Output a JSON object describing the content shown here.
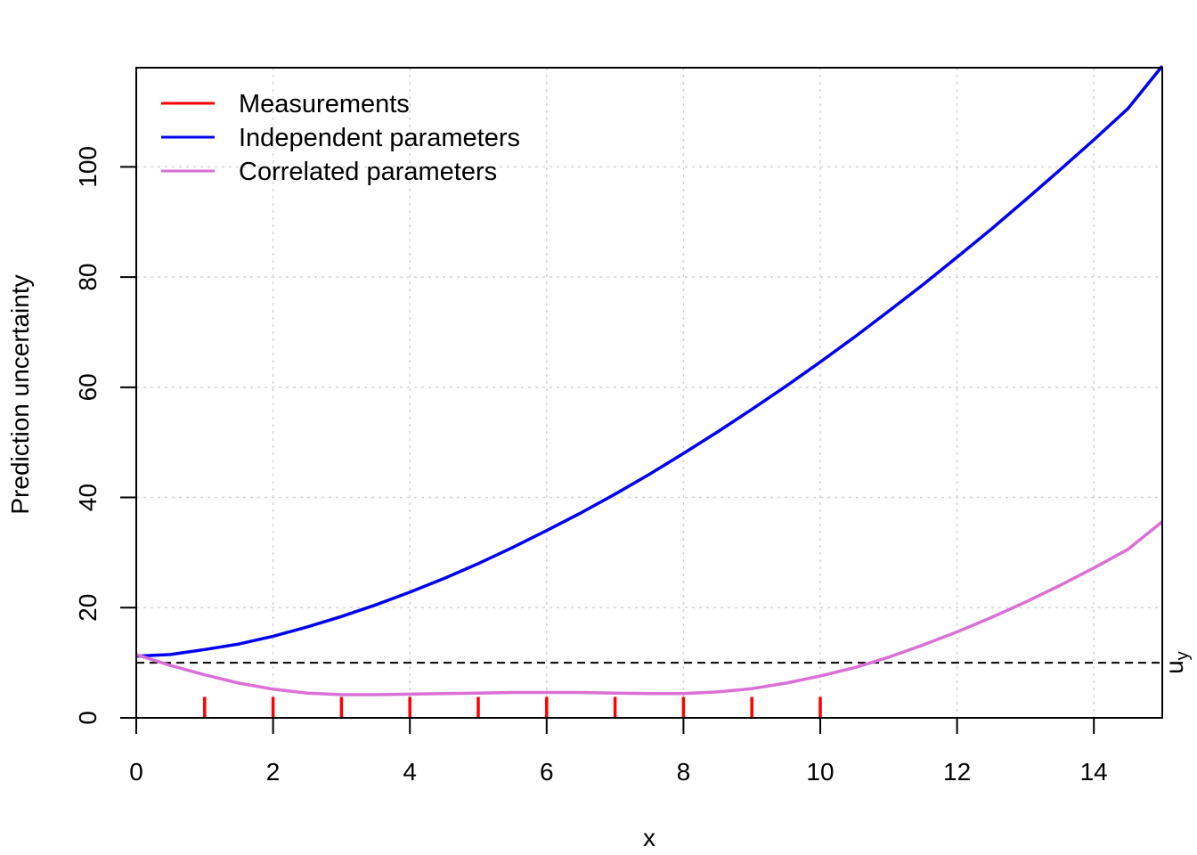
{
  "chart_data": {
    "type": "line",
    "xlabel": "x",
    "ylabel": "Prediction uncertainty",
    "xlim": [
      0,
      15
    ],
    "ylim": [
      0,
      118
    ],
    "x_ticks": [
      "0",
      "2",
      "4",
      "6",
      "8",
      "10",
      "12",
      "14"
    ],
    "y_ticks": [
      "0",
      "20",
      "40",
      "60",
      "80",
      "100"
    ],
    "grid": true,
    "legend_position": "top-left",
    "series": [
      {
        "name": "Independent parameters",
        "color": "#0000ee",
        "x": [
          0,
          0.5,
          1,
          1.5,
          2,
          2.5,
          3,
          3.5,
          4,
          4.5,
          5,
          5.5,
          6,
          6.5,
          7,
          7.5,
          8,
          8.5,
          9,
          9.5,
          10,
          10.5,
          11,
          11.5,
          12,
          12.5,
          13,
          13.5,
          14,
          14.5,
          15
        ],
        "y": [
          11.2,
          11.5,
          12.4,
          13.4,
          14.8,
          16.5,
          18.4,
          20.5,
          22.8,
          25.3,
          28.0,
          30.9,
          34.0,
          37.2,
          40.6,
          44.2,
          48.0,
          51.9,
          56.0,
          60.2,
          64.6,
          69.1,
          73.8,
          78.6,
          83.6,
          88.7,
          94.0,
          99.4,
          104.9,
          110.6,
          118.3
        ]
      },
      {
        "name": "Correlated parameters",
        "color": "#da70d6",
        "x": [
          0,
          0.5,
          1,
          1.5,
          2,
          2.5,
          3,
          3.5,
          4,
          4.5,
          5,
          5.5,
          6,
          6.5,
          7,
          7.5,
          8,
          8.5,
          9,
          9.5,
          10,
          10.5,
          11,
          11.5,
          12,
          12.5,
          13,
          13.5,
          14,
          14.5,
          15
        ],
        "y": [
          11.5,
          9.5,
          7.8,
          6.3,
          5.2,
          4.5,
          4.2,
          4.2,
          4.3,
          4.4,
          4.5,
          4.6,
          4.6,
          4.6,
          4.5,
          4.4,
          4.4,
          4.7,
          5.3,
          6.3,
          7.6,
          9.1,
          11.0,
          13.2,
          15.6,
          18.2,
          21.0,
          24.0,
          27.2,
          30.6,
          35.6
        ]
      }
    ],
    "measurements": {
      "name": "Measurements",
      "color": "#ff0000",
      "x": [
        1,
        2,
        3,
        4,
        5,
        6,
        7,
        8,
        9,
        10
      ],
      "height": 3.8
    },
    "reference_line": {
      "label_main": "u",
      "label_sub": "y",
      "value": 10,
      "color": "#000000"
    },
    "legend": [
      {
        "label": "Measurements",
        "color": "#ff0000"
      },
      {
        "label": "Independent parameters",
        "color": "#0000ee"
      },
      {
        "label": "Correlated parameters",
        "color": "#da70d6"
      }
    ]
  }
}
